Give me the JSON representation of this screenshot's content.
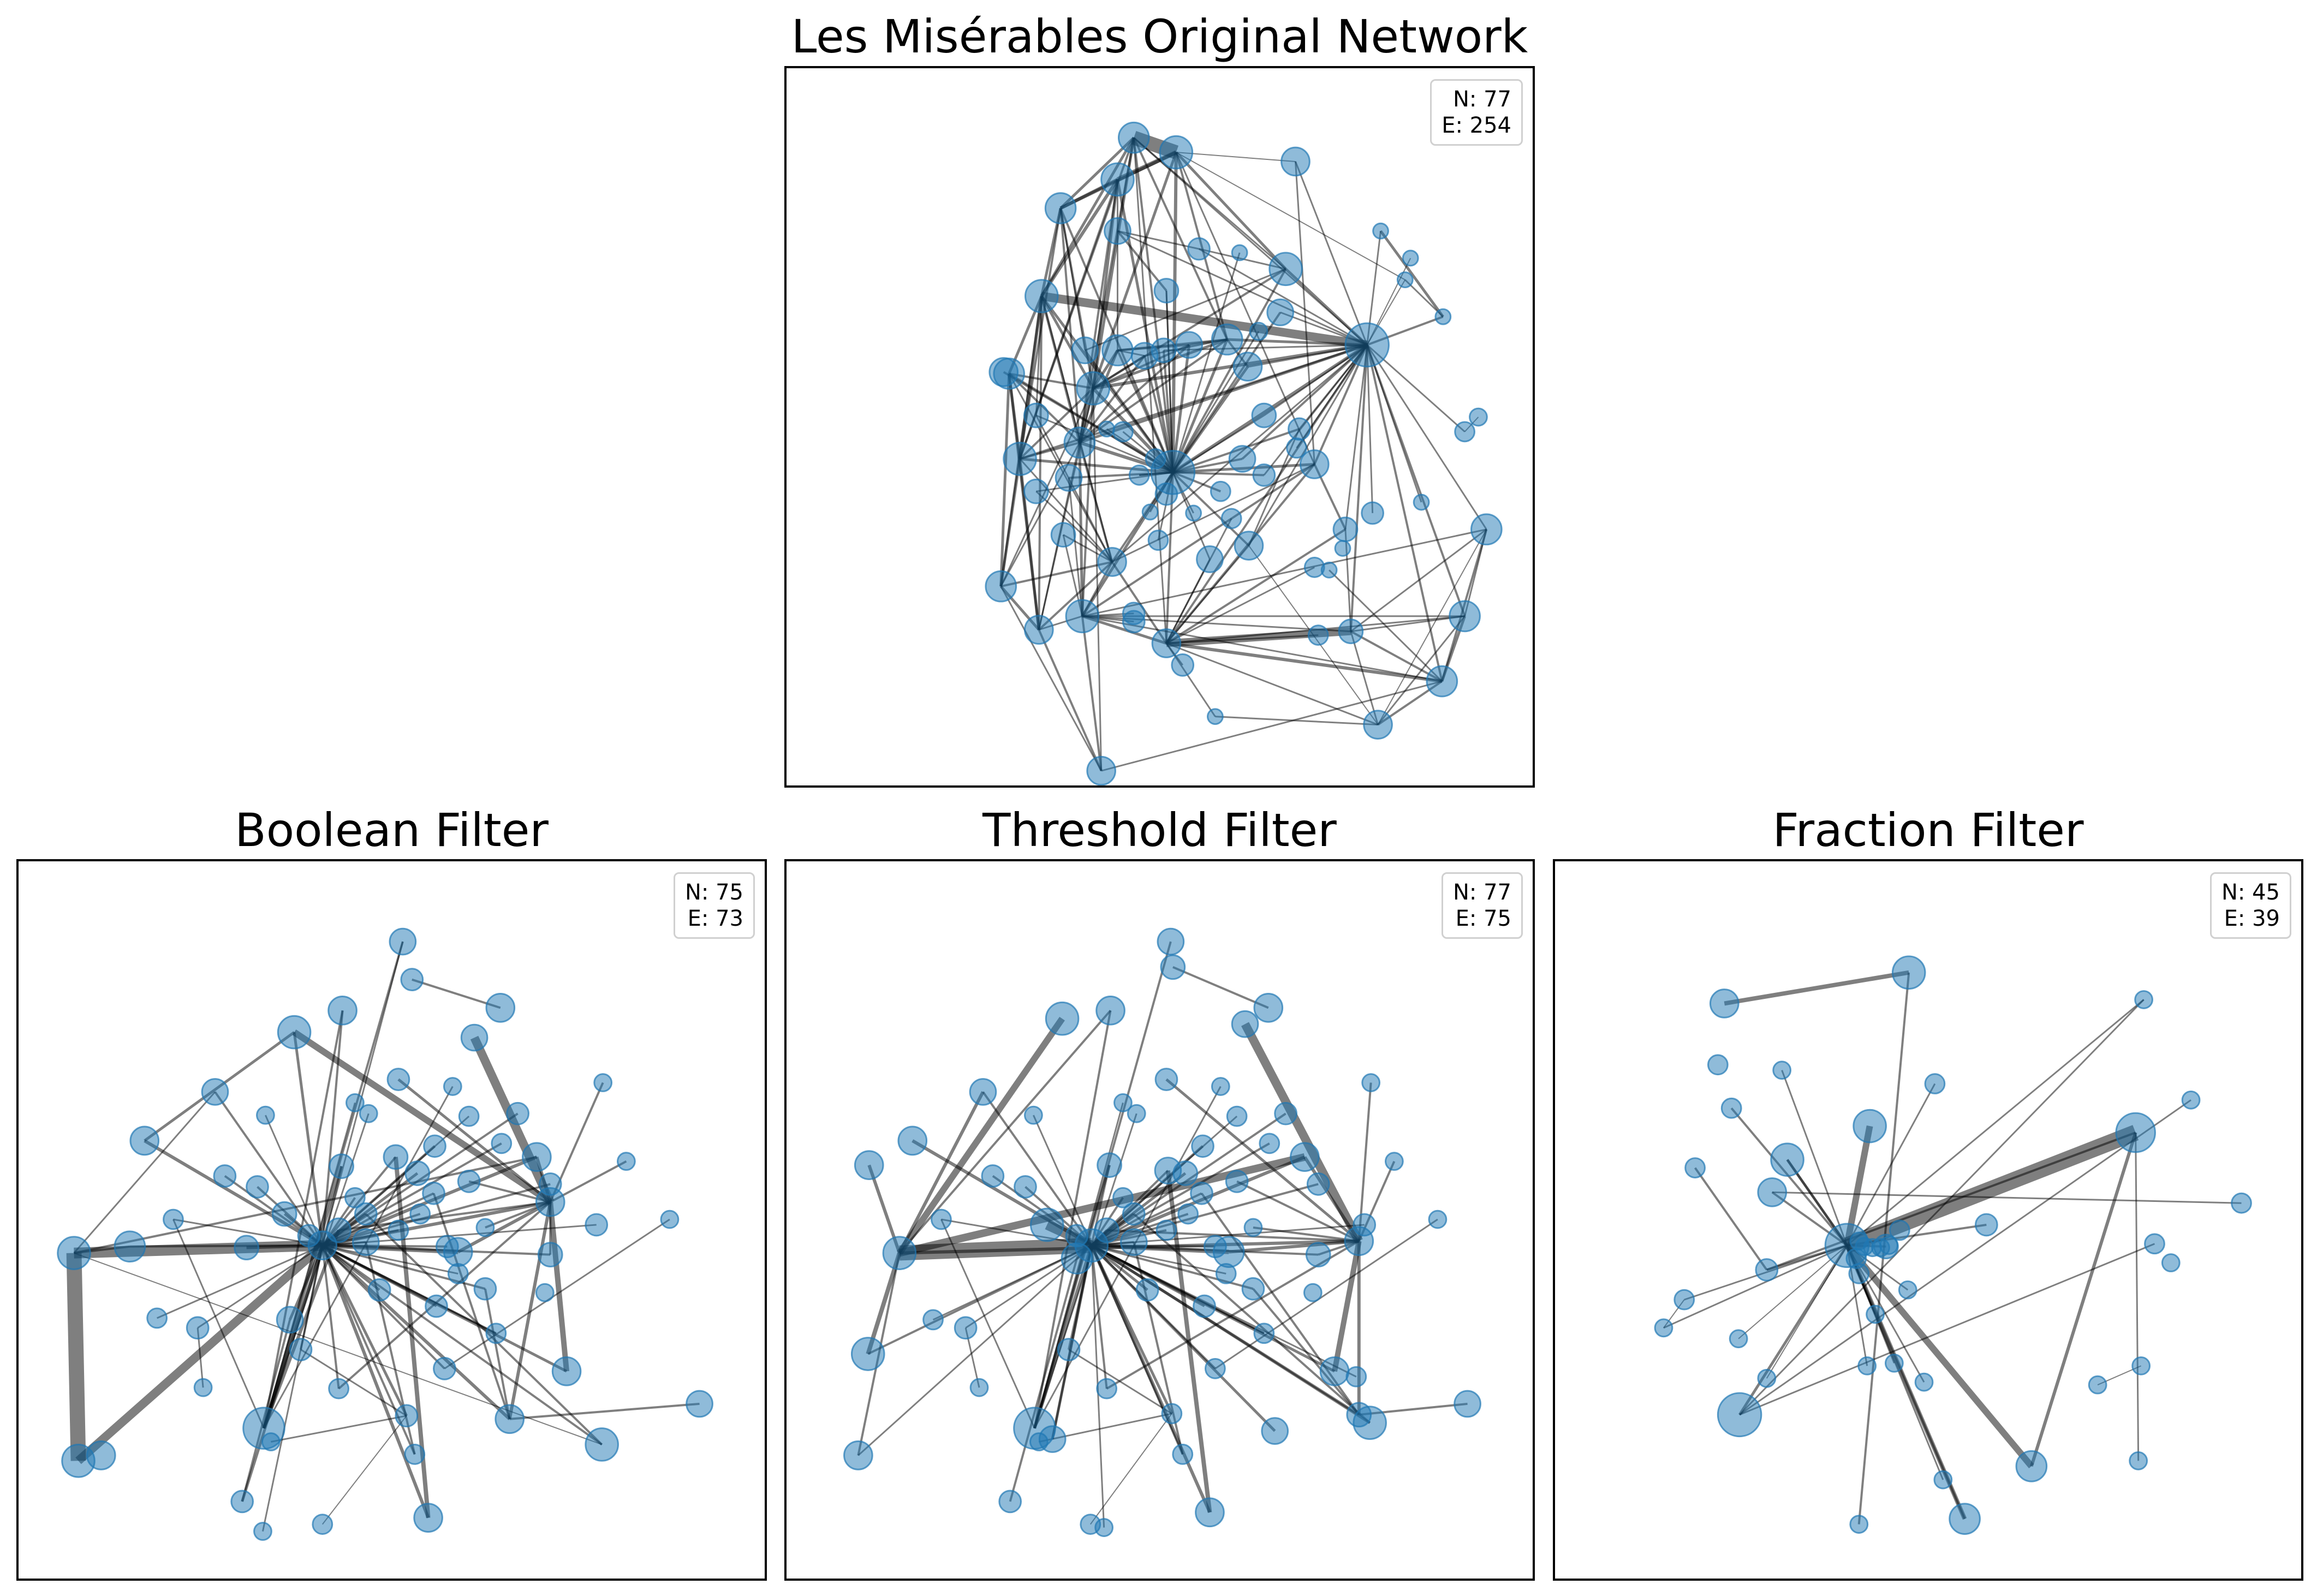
{
  "panels": [
    {
      "key": "original",
      "title": "Les Misérables Original Network",
      "nodes_label": "N: 77",
      "edges_label": "E: 254"
    },
    {
      "key": "boolean",
      "title": "Boolean Filter",
      "nodes_label": "N: 75",
      "edges_label": "E: 73"
    },
    {
      "key": "threshold",
      "title": "Threshold Filter",
      "nodes_label": "N: 77",
      "edges_label": "E: 75"
    },
    {
      "key": "fraction",
      "title": "Fraction Filter",
      "nodes_label": "N: 45",
      "edges_label": "E: 39"
    }
  ],
  "colors": {
    "node_fill": "#1f77b4",
    "edge": "#000000",
    "frame": "#000000",
    "legend_border": "#d0d0d0"
  }
}
